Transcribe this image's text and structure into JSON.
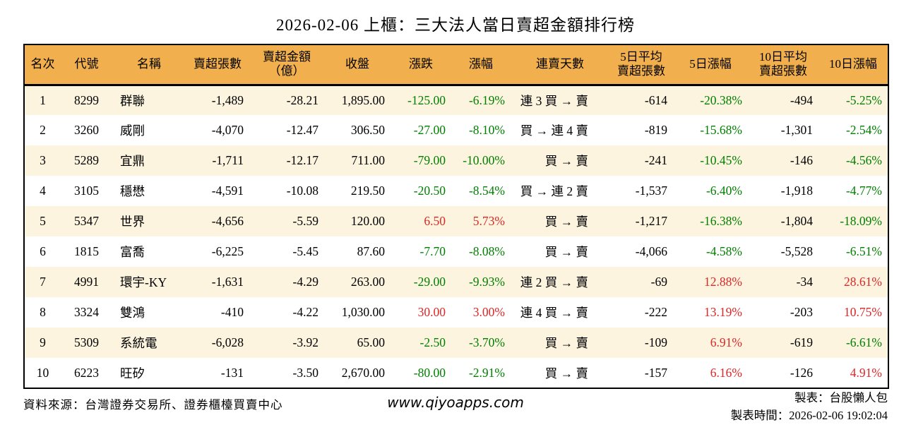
{
  "title": "2026-02-06 上櫃：三大法人當日賣超金額排行榜",
  "colors": {
    "header_bg": "#F1AF4D",
    "row_odd_bg": "#FCF4DF",
    "row_even_bg": "#FFFFFF",
    "up_red": "#E02626",
    "down_green": "#008000",
    "border": "#000000"
  },
  "chart_data": {
    "type": "table",
    "title": "2026-02-06 上櫃：三大法人當日賣超金額排行榜",
    "columns": [
      "名次",
      "代號",
      "名稱",
      "賣超張數",
      "賣超金額（億）",
      "收盤",
      "漲跌",
      "漲幅",
      "連賣天數",
      "5日平均賣超張數",
      "5日漲幅",
      "10日平均賣超張數",
      "10日漲幅"
    ],
    "rows": [
      [
        "1",
        "8299",
        "群聯",
        "-1,489",
        "-28.21",
        "1,895.00",
        "-125.00",
        "-6.19%",
        "連 3 買 → 賣",
        "-614",
        "-20.38%",
        "-494",
        "-5.25%"
      ],
      [
        "2",
        "3260",
        "威剛",
        "-4,070",
        "-12.47",
        "306.50",
        "-27.00",
        "-8.10%",
        "買 → 連 4 賣",
        "-819",
        "-15.68%",
        "-1,301",
        "-2.54%"
      ],
      [
        "3",
        "5289",
        "宜鼎",
        "-1,711",
        "-12.17",
        "711.00",
        "-79.00",
        "-10.00%",
        "買 → 賣",
        "-241",
        "-10.45%",
        "-146",
        "-4.56%"
      ],
      [
        "4",
        "3105",
        "穩懋",
        "-4,591",
        "-10.08",
        "219.50",
        "-20.50",
        "-8.54%",
        "買 → 連 2 賣",
        "-1,537",
        "-6.40%",
        "-1,918",
        "-4.77%"
      ],
      [
        "5",
        "5347",
        "世界",
        "-4,656",
        "-5.59",
        "120.00",
        "6.50",
        "5.73%",
        "買 → 賣",
        "-1,217",
        "-16.38%",
        "-1,804",
        "-18.09%"
      ],
      [
        "6",
        "1815",
        "富喬",
        "-6,225",
        "-5.45",
        "87.60",
        "-7.70",
        "-8.08%",
        "買 → 賣",
        "-4,066",
        "-4.58%",
        "-5,528",
        "-6.51%"
      ],
      [
        "7",
        "4991",
        "環宇-KY",
        "-1,631",
        "-4.29",
        "263.00",
        "-29.00",
        "-9.93%",
        "連 2 買 → 賣",
        "-69",
        "12.88%",
        "-34",
        "28.61%"
      ],
      [
        "8",
        "3324",
        "雙鴻",
        "-410",
        "-4.22",
        "1,030.00",
        "30.00",
        "3.00%",
        "連 4 買 → 賣",
        "-222",
        "13.19%",
        "-203",
        "10.75%"
      ],
      [
        "9",
        "5309",
        "系統電",
        "-6,028",
        "-3.92",
        "65.00",
        "-2.50",
        "-3.70%",
        "買 → 賣",
        "-109",
        "6.91%",
        "-619",
        "-6.61%"
      ],
      [
        "10",
        "6223",
        "旺矽",
        "-131",
        "-3.50",
        "2,670.00",
        "-80.00",
        "-2.91%",
        "買 → 賣",
        "-157",
        "6.16%",
        "-126",
        "4.91%"
      ]
    ]
  },
  "table": {
    "columns": [
      {
        "key": "rank",
        "label": "名次",
        "signed": false
      },
      {
        "key": "code",
        "label": "代號",
        "signed": false
      },
      {
        "key": "name",
        "label": "名稱",
        "signed": false
      },
      {
        "key": "sell_volume",
        "label": "賣超張數",
        "signed": false
      },
      {
        "key": "sell_amount",
        "label": "賣超金額\n（億）",
        "signed": false
      },
      {
        "key": "close",
        "label": "收盤",
        "signed": false
      },
      {
        "key": "change",
        "label": "漲跌",
        "signed": true
      },
      {
        "key": "change_pct",
        "label": "漲幅",
        "signed": true
      },
      {
        "key": "streak",
        "label": "連賣天數",
        "signed": false
      },
      {
        "key": "avg5",
        "label": "5日平均\n賣超張數",
        "signed": false
      },
      {
        "key": "pct5",
        "label": "5日漲幅",
        "signed": true
      },
      {
        "key": "avg10",
        "label": "10日平均\n賣超張數",
        "signed": false
      },
      {
        "key": "pct10",
        "label": "10日漲幅",
        "signed": true
      }
    ],
    "rows": [
      {
        "rank": "1",
        "code": "8299",
        "name": "群聯",
        "sell_volume": "-1,489",
        "sell_amount": "-28.21",
        "close": "1,895.00",
        "change": "-125.00",
        "change_pct": "-6.19%",
        "streak": "連 3 買 → 賣",
        "avg5": "-614",
        "pct5": "-20.38%",
        "avg10": "-494",
        "pct10": "-5.25%"
      },
      {
        "rank": "2",
        "code": "3260",
        "name": "威剛",
        "sell_volume": "-4,070",
        "sell_amount": "-12.47",
        "close": "306.50",
        "change": "-27.00",
        "change_pct": "-8.10%",
        "streak": "買 → 連 4 賣",
        "avg5": "-819",
        "pct5": "-15.68%",
        "avg10": "-1,301",
        "pct10": "-2.54%"
      },
      {
        "rank": "3",
        "code": "5289",
        "name": "宜鼎",
        "sell_volume": "-1,711",
        "sell_amount": "-12.17",
        "close": "711.00",
        "change": "-79.00",
        "change_pct": "-10.00%",
        "streak": "買 → 賣",
        "avg5": "-241",
        "pct5": "-10.45%",
        "avg10": "-146",
        "pct10": "-4.56%"
      },
      {
        "rank": "4",
        "code": "3105",
        "name": "穩懋",
        "sell_volume": "-4,591",
        "sell_amount": "-10.08",
        "close": "219.50",
        "change": "-20.50",
        "change_pct": "-8.54%",
        "streak": "買 → 連 2 賣",
        "avg5": "-1,537",
        "pct5": "-6.40%",
        "avg10": "-1,918",
        "pct10": "-4.77%"
      },
      {
        "rank": "5",
        "code": "5347",
        "name": "世界",
        "sell_volume": "-4,656",
        "sell_amount": "-5.59",
        "close": "120.00",
        "change": "6.50",
        "change_pct": "5.73%",
        "streak": "買 → 賣",
        "avg5": "-1,217",
        "pct5": "-16.38%",
        "avg10": "-1,804",
        "pct10": "-18.09%"
      },
      {
        "rank": "6",
        "code": "1815",
        "name": "富喬",
        "sell_volume": "-6,225",
        "sell_amount": "-5.45",
        "close": "87.60",
        "change": "-7.70",
        "change_pct": "-8.08%",
        "streak": "買 → 賣",
        "avg5": "-4,066",
        "pct5": "-4.58%",
        "avg10": "-5,528",
        "pct10": "-6.51%"
      },
      {
        "rank": "7",
        "code": "4991",
        "name": "環宇-KY",
        "sell_volume": "-1,631",
        "sell_amount": "-4.29",
        "close": "263.00",
        "change": "-29.00",
        "change_pct": "-9.93%",
        "streak": "連 2 買 → 賣",
        "avg5": "-69",
        "pct5": "12.88%",
        "avg10": "-34",
        "pct10": "28.61%"
      },
      {
        "rank": "8",
        "code": "3324",
        "name": "雙鴻",
        "sell_volume": "-410",
        "sell_amount": "-4.22",
        "close": "1,030.00",
        "change": "30.00",
        "change_pct": "3.00%",
        "streak": "連 4 買 → 賣",
        "avg5": "-222",
        "pct5": "13.19%",
        "avg10": "-203",
        "pct10": "10.75%"
      },
      {
        "rank": "9",
        "code": "5309",
        "name": "系統電",
        "sell_volume": "-6,028",
        "sell_amount": "-3.92",
        "close": "65.00",
        "change": "-2.50",
        "change_pct": "-3.70%",
        "streak": "買 → 賣",
        "avg5": "-109",
        "pct5": "6.91%",
        "avg10": "-619",
        "pct10": "-6.61%"
      },
      {
        "rank": "10",
        "code": "6223",
        "name": "旺矽",
        "sell_volume": "-131",
        "sell_amount": "-3.50",
        "close": "2,670.00",
        "change": "-80.00",
        "change_pct": "-2.91%",
        "streak": "買 → 賣",
        "avg5": "-157",
        "pct5": "6.16%",
        "avg10": "-126",
        "pct10": "4.91%"
      }
    ]
  },
  "footer": {
    "source": "資料來源：台灣證券交易所、證券櫃檯買賣中心",
    "website": "www.qiyoapps.com",
    "maker": "製表：台股懶人包",
    "time": "製表時間：2026-02-06 19:02:04"
  }
}
